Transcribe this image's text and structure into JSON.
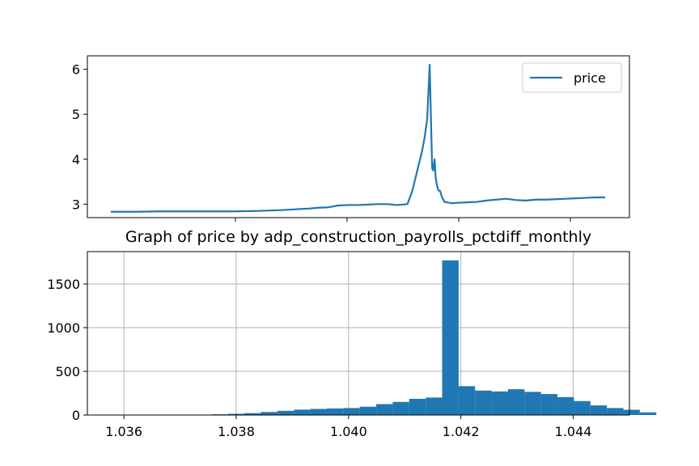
{
  "chart_data": [
    {
      "type": "line",
      "title": "",
      "xlabel": "",
      "ylabel": "",
      "x_tick_labels": [],
      "ylim": [
        2.7,
        6.3
      ],
      "yticks": [
        3,
        4,
        5,
        6
      ],
      "grid": false,
      "legend": {
        "placement": "top-right",
        "entries": [
          "price"
        ]
      },
      "series": [
        {
          "name": "price",
          "color": "#1f77b4",
          "x": [
            0.0,
            0.05,
            0.1,
            0.15,
            0.2,
            0.25,
            0.3,
            0.35,
            0.38,
            0.4,
            0.42,
            0.44,
            0.46,
            0.48,
            0.5,
            0.52,
            0.54,
            0.56,
            0.58,
            0.6,
            0.61,
            0.62,
            0.63,
            0.635,
            0.64,
            0.645,
            0.65,
            0.652,
            0.655,
            0.657,
            0.66,
            0.663,
            0.666,
            0.67,
            0.675,
            0.68,
            0.685,
            0.69,
            0.7,
            0.72,
            0.74,
            0.76,
            0.78,
            0.8,
            0.82,
            0.84,
            0.86,
            0.88,
            0.9,
            0.92,
            0.94,
            0.96,
            0.98,
            1.0
          ],
          "values": [
            2.83,
            2.83,
            2.84,
            2.84,
            2.84,
            2.84,
            2.85,
            2.87,
            2.89,
            2.9,
            2.92,
            2.93,
            2.97,
            2.98,
            2.98,
            2.99,
            3.0,
            3.0,
            2.98,
            3.0,
            3.3,
            3.75,
            4.2,
            4.5,
            4.9,
            6.1,
            3.8,
            3.75,
            4.0,
            3.6,
            3.4,
            3.3,
            3.3,
            3.15,
            3.05,
            3.04,
            3.03,
            3.02,
            3.03,
            3.04,
            3.05,
            3.08,
            3.1,
            3.12,
            3.09,
            3.08,
            3.1,
            3.1,
            3.11,
            3.12,
            3.13,
            3.14,
            3.15,
            3.15
          ]
        }
      ]
    },
    {
      "type": "bar",
      "title": "Graph of price by adp_construction_payrolls_pctdiff_monthly",
      "xlabel": "",
      "ylabel": "",
      "xlim": [
        1.03535,
        1.045
      ],
      "ylim": [
        0,
        1870
      ],
      "xticks": [
        1.036,
        1.038,
        1.04,
        1.042,
        1.044
      ],
      "x_tick_labels": [
        "1.036",
        "1.038",
        "1.040",
        "1.042",
        "1.044"
      ],
      "yticks": [
        0,
        500,
        1000,
        1500
      ],
      "y_tick_labels": [
        "0",
        "500",
        "1000",
        "1500"
      ],
      "grid": true,
      "color": "#1f77b4",
      "bin_start": 1.0358,
      "bin_width": 0.0002933,
      "values": [
        1,
        1,
        1,
        1,
        2,
        3,
        8,
        14,
        22,
        35,
        48,
        62,
        70,
        75,
        80,
        95,
        125,
        150,
        185,
        200,
        1770,
        330,
        280,
        270,
        295,
        265,
        240,
        205,
        160,
        110,
        80,
        60,
        30
      ]
    }
  ]
}
